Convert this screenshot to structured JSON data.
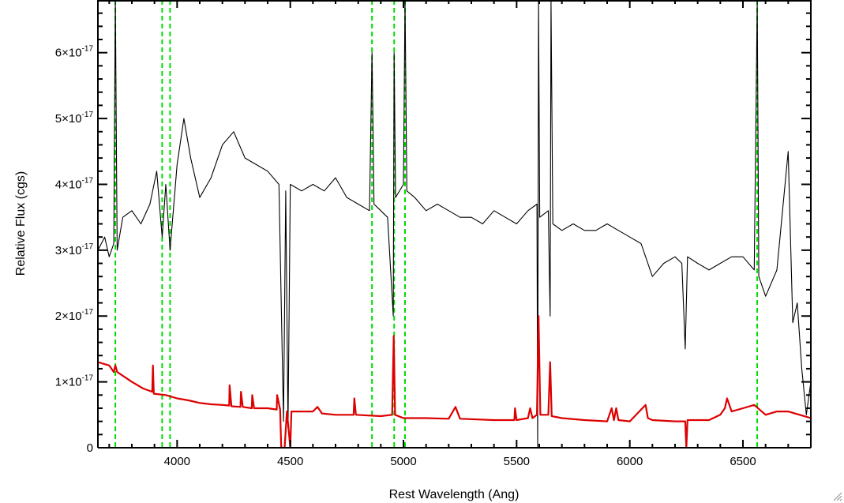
{
  "chart_data": {
    "type": "line",
    "title": "",
    "xlabel": "Rest Wavelength (Ang)",
    "ylabel": "Relative Flux (cgs)",
    "xlim": [
      3650,
      6800
    ],
    "ylim": [
      0,
      6.8e-17
    ],
    "x_ticks": [
      4000,
      4500,
      5000,
      5500,
      6000,
      6500
    ],
    "x_tick_labels": [
      "4000",
      "4500",
      "5000",
      "5500",
      "6000",
      "6500"
    ],
    "y_ticks": [
      0,
      1e-17,
      2e-17,
      3e-17,
      4e-17,
      5e-17,
      6e-17
    ],
    "y_tick_labels": [
      {
        "mantissa": "0",
        "exp": ""
      },
      {
        "mantissa": "1×10",
        "exp": "-17"
      },
      {
        "mantissa": "2×10",
        "exp": "-17"
      },
      {
        "mantissa": "3×10",
        "exp": "-17"
      },
      {
        "mantissa": "4×10",
        "exp": "-17"
      },
      {
        "mantissa": "5×10",
        "exp": "-17"
      },
      {
        "mantissa": "6×10",
        "exp": "-17"
      }
    ],
    "reference_lines_x": [
      3727,
      3934,
      3969,
      4861,
      4959,
      5007,
      6563
    ],
    "grid": false,
    "legend": "none",
    "colors": {
      "spectrum": "#000000",
      "error": "#dd0000",
      "reference": "#00dd00",
      "axes": "#000000"
    },
    "series": [
      {
        "key": "spectrum",
        "points": [
          [
            3650,
            3e-17
          ],
          [
            3680,
            3.2e-17
          ],
          [
            3700,
            2.9e-17
          ],
          [
            3720,
            3.1e-17
          ],
          [
            3727,
            6.8e-17
          ],
          [
            3735,
            3e-17
          ],
          [
            3760,
            3.5e-17
          ],
          [
            3800,
            3.6e-17
          ],
          [
            3840,
            3.4e-17
          ],
          [
            3880,
            3.7e-17
          ],
          [
            3910,
            4.2e-17
          ],
          [
            3934,
            3.2e-17
          ],
          [
            3950,
            4e-17
          ],
          [
            3969,
            3e-17
          ],
          [
            4000,
            4.3e-17
          ],
          [
            4030,
            5e-17
          ],
          [
            4060,
            4.4e-17
          ],
          [
            4100,
            3.8e-17
          ],
          [
            4150,
            4.1e-17
          ],
          [
            4200,
            4.6e-17
          ],
          [
            4250,
            4.8e-17
          ],
          [
            4300,
            4.4e-17
          ],
          [
            4350,
            4.3e-17
          ],
          [
            4400,
            4.2e-17
          ],
          [
            4450,
            4e-17
          ],
          [
            4470,
            4e-18
          ],
          [
            4480,
            3.9e-17
          ],
          [
            4490,
            3e-18
          ],
          [
            4500,
            4e-17
          ],
          [
            4550,
            3.9e-17
          ],
          [
            4600,
            4e-17
          ],
          [
            4650,
            3.9e-17
          ],
          [
            4700,
            4.1e-17
          ],
          [
            4750,
            3.8e-17
          ],
          [
            4800,
            3.7e-17
          ],
          [
            4850,
            3.6e-17
          ],
          [
            4861,
            6e-17
          ],
          [
            4870,
            3.7e-17
          ],
          [
            4900,
            3.6e-17
          ],
          [
            4930,
            3.5e-17
          ],
          [
            4955,
            2e-17
          ],
          [
            4959,
            6e-17
          ],
          [
            4965,
            3.8e-17
          ],
          [
            5000,
            4e-17
          ],
          [
            5007,
            6.8e-17
          ],
          [
            5015,
            3.9e-17
          ],
          [
            5050,
            3.8e-17
          ],
          [
            5100,
            3.6e-17
          ],
          [
            5150,
            3.7e-17
          ],
          [
            5200,
            3.6e-17
          ],
          [
            5250,
            3.5e-17
          ],
          [
            5300,
            3.5e-17
          ],
          [
            5350,
            3.4e-17
          ],
          [
            5400,
            3.6e-17
          ],
          [
            5450,
            3.5e-17
          ],
          [
            5500,
            3.4e-17
          ],
          [
            5550,
            3.6e-17
          ],
          [
            5590,
            3.7e-17
          ],
          [
            5593,
            0.0
          ],
          [
            5597,
            6.8e-17
          ],
          [
            5602,
            3.5e-17
          ],
          [
            5640,
            3.6e-17
          ],
          [
            5648,
            2e-17
          ],
          [
            5652,
            6.8e-17
          ],
          [
            5660,
            3.4e-17
          ],
          [
            5700,
            3.3e-17
          ],
          [
            5750,
            3.4e-17
          ],
          [
            5800,
            3.3e-17
          ],
          [
            5850,
            3.3e-17
          ],
          [
            5900,
            3.4e-17
          ],
          [
            5950,
            3.3e-17
          ],
          [
            6000,
            3.2e-17
          ],
          [
            6050,
            3.1e-17
          ],
          [
            6100,
            2.6e-17
          ],
          [
            6150,
            2.8e-17
          ],
          [
            6200,
            2.9e-17
          ],
          [
            6230,
            2.8e-17
          ],
          [
            6245,
            1.5e-17
          ],
          [
            6255,
            2.9e-17
          ],
          [
            6300,
            2.8e-17
          ],
          [
            6350,
            2.7e-17
          ],
          [
            6400,
            2.8e-17
          ],
          [
            6450,
            2.9e-17
          ],
          [
            6500,
            2.9e-17
          ],
          [
            6550,
            2.7e-17
          ],
          [
            6563,
            6.8e-17
          ],
          [
            6570,
            2.6e-17
          ],
          [
            6600,
            2.3e-17
          ],
          [
            6650,
            2.7e-17
          ],
          [
            6700,
            4.5e-17
          ],
          [
            6720,
            1.9e-17
          ],
          [
            6740,
            2.2e-17
          ],
          [
            6760,
            1.2e-17
          ],
          [
            6780,
            5e-18
          ],
          [
            6800,
            1e-17
          ]
        ]
      },
      {
        "key": "error",
        "points": [
          [
            3650,
            1.3e-17
          ],
          [
            3700,
            1.25e-17
          ],
          [
            3720,
            1.15e-17
          ],
          [
            3727,
            1.25e-17
          ],
          [
            3735,
            1.15e-17
          ],
          [
            3800,
            1e-17
          ],
          [
            3850,
            9e-18
          ],
          [
            3890,
            8.5e-18
          ],
          [
            3893,
            1.25e-17
          ],
          [
            3897,
            8.2e-18
          ],
          [
            3950,
            8e-18
          ],
          [
            4000,
            7.5e-18
          ],
          [
            4050,
            7.2e-18
          ],
          [
            4100,
            6.8e-18
          ],
          [
            4150,
            6.6e-18
          ],
          [
            4200,
            6.5e-18
          ],
          [
            4230,
            6.4e-18
          ],
          [
            4232,
            9.5e-18
          ],
          [
            4240,
            6.3e-18
          ],
          [
            4280,
            6.2e-18
          ],
          [
            4282,
            8.5e-18
          ],
          [
            4290,
            6.2e-18
          ],
          [
            4330,
            6e-18
          ],
          [
            4332,
            8e-18
          ],
          [
            4340,
            6e-18
          ],
          [
            4400,
            6e-18
          ],
          [
            4440,
            5.8e-18
          ],
          [
            4442,
            8e-18
          ],
          [
            4455,
            5.8e-18
          ],
          [
            4460,
            0.0
          ],
          [
            4475,
            0.0
          ],
          [
            4485,
            5.5e-18
          ],
          [
            4500,
            0.0
          ],
          [
            4505,
            5.5e-18
          ],
          [
            4600,
            5.5e-18
          ],
          [
            4620,
            6.2e-18
          ],
          [
            4640,
            5.2e-18
          ],
          [
            4700,
            5e-18
          ],
          [
            4780,
            5e-18
          ],
          [
            4783,
            7.5e-18
          ],
          [
            4790,
            5e-18
          ],
          [
            4900,
            4.8e-18
          ],
          [
            4950,
            5e-18
          ],
          [
            4957,
            1.7e-17
          ],
          [
            4963,
            5e-18
          ],
          [
            5000,
            4.5e-18
          ],
          [
            5100,
            4.5e-18
          ],
          [
            5200,
            4.4e-18
          ],
          [
            5230,
            6.2e-18
          ],
          [
            5250,
            4.4e-18
          ],
          [
            5400,
            4.2e-18
          ],
          [
            5490,
            4.2e-18
          ],
          [
            5493,
            6e-18
          ],
          [
            5500,
            4.2e-18
          ],
          [
            5550,
            4.5e-18
          ],
          [
            5560,
            6e-18
          ],
          [
            5570,
            4.5e-18
          ],
          [
            5590,
            5e-18
          ],
          [
            5597,
            2e-17
          ],
          [
            5605,
            5e-18
          ],
          [
            5640,
            5e-18
          ],
          [
            5648,
            1.3e-17
          ],
          [
            5655,
            4.8e-18
          ],
          [
            5700,
            4.5e-18
          ],
          [
            5800,
            4.2e-18
          ],
          [
            5900,
            4e-18
          ],
          [
            5920,
            6e-18
          ],
          [
            5930,
            4.2e-18
          ],
          [
            5940,
            6e-18
          ],
          [
            5950,
            4.2e-18
          ],
          [
            6000,
            4e-18
          ],
          [
            6070,
            6.5e-18
          ],
          [
            6080,
            4.5e-18
          ],
          [
            6100,
            4.2e-18
          ],
          [
            6200,
            4e-18
          ],
          [
            6245,
            4e-18
          ],
          [
            6250,
            0.0
          ],
          [
            6255,
            4.2e-18
          ],
          [
            6350,
            4.2e-18
          ],
          [
            6400,
            5e-18
          ],
          [
            6420,
            6e-18
          ],
          [
            6430,
            7.5e-18
          ],
          [
            6450,
            5.5e-18
          ],
          [
            6500,
            6e-18
          ],
          [
            6550,
            6.5e-18
          ],
          [
            6600,
            5e-18
          ],
          [
            6650,
            5.5e-18
          ],
          [
            6700,
            5.5e-18
          ],
          [
            6750,
            5e-18
          ],
          [
            6800,
            4.5e-18
          ]
        ]
      }
    ]
  }
}
